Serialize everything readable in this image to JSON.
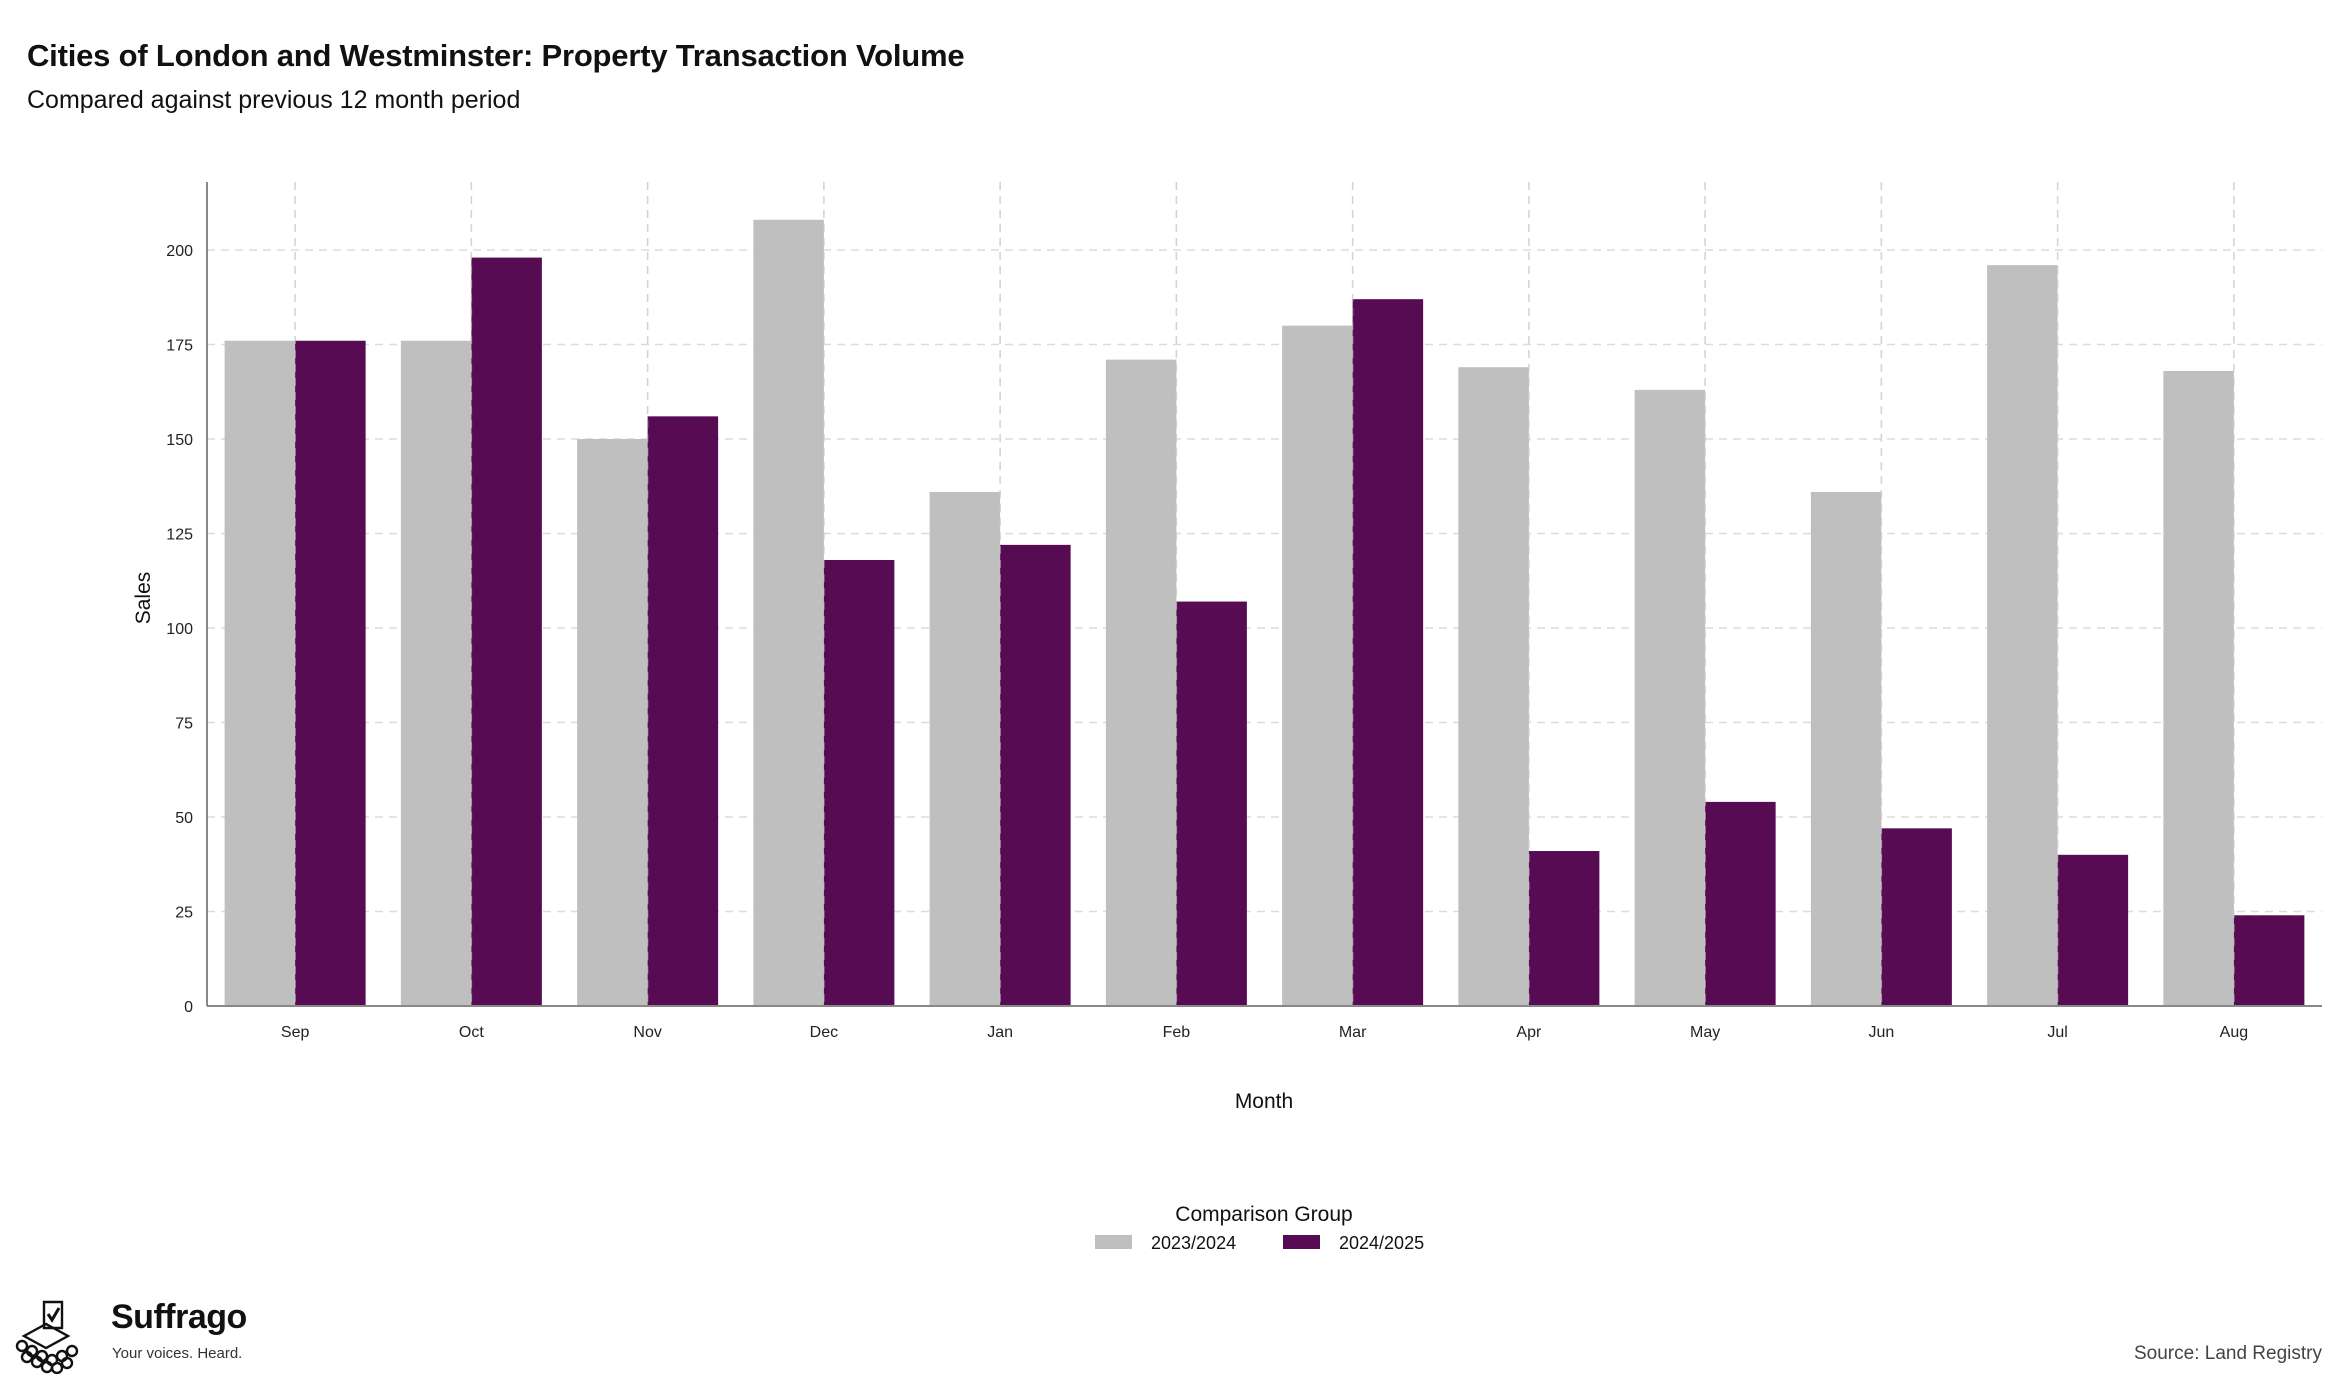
{
  "header": {
    "title": "Cities of London and Westminster: Property Transaction Volume",
    "subtitle": "Compared against previous 12 month period"
  },
  "chart_data": {
    "type": "bar",
    "categories": [
      "Sep",
      "Oct",
      "Nov",
      "Dec",
      "Jan",
      "Feb",
      "Mar",
      "Apr",
      "May",
      "Jun",
      "Jul",
      "Aug"
    ],
    "series": [
      {
        "name": "2023/2024",
        "color": "#bfbfbf",
        "values": [
          176,
          176,
          150,
          208,
          136,
          171,
          180,
          169,
          163,
          136,
          196,
          168
        ]
      },
      {
        "name": "2024/2025",
        "color": "#560b52",
        "values": [
          176,
          198,
          156,
          118,
          122,
          107,
          187,
          41,
          54,
          47,
          40,
          24
        ]
      }
    ],
    "xlabel": "Month",
    "ylabel": "Sales",
    "ylim": [
      0,
      218
    ],
    "yticks": [
      0,
      25,
      50,
      75,
      100,
      125,
      150,
      175,
      200
    ],
    "grid": true,
    "legend": {
      "title": "Comparison Group",
      "position": "bottom"
    }
  },
  "footer": {
    "brand_name": "Suffrago",
    "brand_tagline": "Your voices. Heard.",
    "source": "Source: Land Registry"
  }
}
